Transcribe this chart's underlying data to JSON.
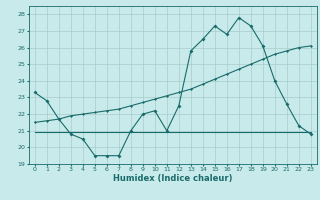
{
  "xlabel": "Humidex (Indice chaleur)",
  "bg_color": "#c8eaea",
  "grid_color": "#a8cccc",
  "line_color": "#1a6b6b",
  "xlim": [
    -0.5,
    23.5
  ],
  "ylim": [
    19,
    28.5
  ],
  "yticks": [
    19,
    20,
    21,
    22,
    23,
    24,
    25,
    26,
    27,
    28
  ],
  "xticks": [
    0,
    1,
    2,
    3,
    4,
    5,
    6,
    7,
    8,
    9,
    10,
    11,
    12,
    13,
    14,
    15,
    16,
    17,
    18,
    19,
    20,
    21,
    22,
    23
  ],
  "line1_x": [
    0,
    1,
    2,
    3,
    4,
    5,
    6,
    7,
    8,
    9,
    10,
    11,
    12,
    13,
    14,
    15,
    16,
    17,
    18,
    19,
    20,
    21,
    22,
    23
  ],
  "line1_y": [
    23.3,
    22.8,
    21.7,
    20.8,
    20.5,
    19.5,
    19.5,
    19.5,
    21.0,
    22.0,
    22.2,
    21.0,
    22.5,
    25.8,
    26.5,
    27.3,
    26.8,
    27.8,
    27.3,
    26.1,
    24.0,
    22.6,
    21.3,
    20.8
  ],
  "line2_x": [
    0,
    1,
    2,
    3,
    4,
    5,
    6,
    7,
    8,
    9,
    10,
    11,
    12,
    13,
    14,
    15,
    16,
    17,
    18,
    19,
    20,
    21,
    22,
    23
  ],
  "line2_y": [
    21.5,
    21.6,
    21.7,
    21.9,
    22.0,
    22.1,
    22.2,
    22.3,
    22.5,
    22.7,
    22.9,
    23.1,
    23.3,
    23.5,
    23.8,
    24.1,
    24.4,
    24.7,
    25.0,
    25.3,
    25.6,
    25.8,
    26.0,
    26.1
  ],
  "line3_x": [
    0,
    23
  ],
  "line3_y": [
    20.9,
    20.9
  ]
}
